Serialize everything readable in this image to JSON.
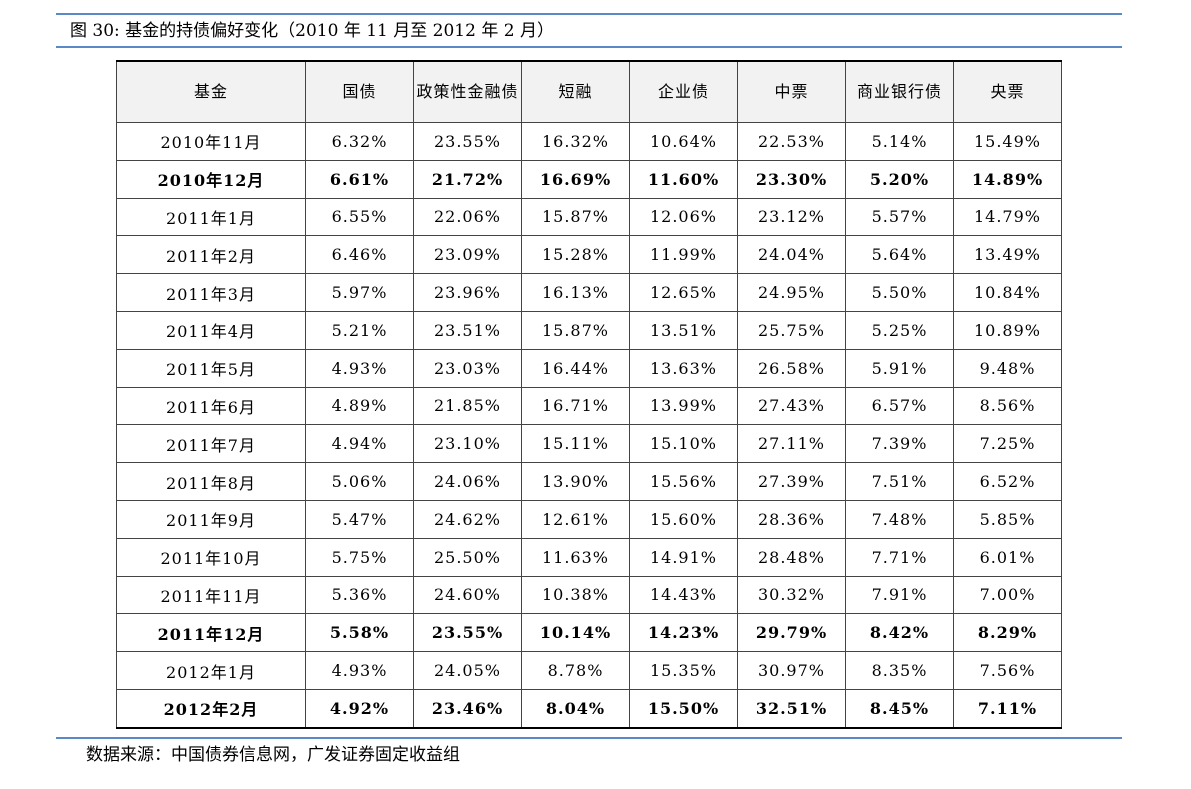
{
  "header": {
    "title": "图 30:  基金的持债偏好变化（2010 年 11 月至 2012 年 2 月）"
  },
  "table": {
    "columns": [
      "基金",
      "国债",
      "政策性金融债",
      "短融",
      "企业债",
      "中票",
      "商业银行债",
      "央票"
    ],
    "rows": [
      {
        "cells": [
          "2010年11月",
          "6.32%",
          "23.55%",
          "16.32%",
          "10.64%",
          "22.53%",
          "5.14%",
          "15.49%"
        ],
        "bold": false
      },
      {
        "cells": [
          "2010年12月",
          "6.61%",
          "21.72%",
          "16.69%",
          "11.60%",
          "23.30%",
          "5.20%",
          "14.89%"
        ],
        "bold": true
      },
      {
        "cells": [
          "2011年1月",
          "6.55%",
          "22.06%",
          "15.87%",
          "12.06%",
          "23.12%",
          "5.57%",
          "14.79%"
        ],
        "bold": false
      },
      {
        "cells": [
          "2011年2月",
          "6.46%",
          "23.09%",
          "15.28%",
          "11.99%",
          "24.04%",
          "5.64%",
          "13.49%"
        ],
        "bold": false
      },
      {
        "cells": [
          "2011年3月",
          "5.97%",
          "23.96%",
          "16.13%",
          "12.65%",
          "24.95%",
          "5.50%",
          "10.84%"
        ],
        "bold": false
      },
      {
        "cells": [
          "2011年4月",
          "5.21%",
          "23.51%",
          "15.87%",
          "13.51%",
          "25.75%",
          "5.25%",
          "10.89%"
        ],
        "bold": false
      },
      {
        "cells": [
          "2011年5月",
          "4.93%",
          "23.03%",
          "16.44%",
          "13.63%",
          "26.58%",
          "5.91%",
          "9.48%"
        ],
        "bold": false
      },
      {
        "cells": [
          "2011年6月",
          "4.89%",
          "21.85%",
          "16.71%",
          "13.99%",
          "27.43%",
          "6.57%",
          "8.56%"
        ],
        "bold": false
      },
      {
        "cells": [
          "2011年7月",
          "4.94%",
          "23.10%",
          "15.11%",
          "15.10%",
          "27.11%",
          "7.39%",
          "7.25%"
        ],
        "bold": false
      },
      {
        "cells": [
          "2011年8月",
          "5.06%",
          "24.06%",
          "13.90%",
          "15.56%",
          "27.39%",
          "7.51%",
          "6.52%"
        ],
        "bold": false
      },
      {
        "cells": [
          "2011年9月",
          "5.47%",
          "24.62%",
          "12.61%",
          "15.60%",
          "28.36%",
          "7.48%",
          "5.85%"
        ],
        "bold": false
      },
      {
        "cells": [
          "2011年10月",
          "5.75%",
          "25.50%",
          "11.63%",
          "14.91%",
          "28.48%",
          "7.71%",
          "6.01%"
        ],
        "bold": false
      },
      {
        "cells": [
          "2011年11月",
          "5.36%",
          "24.60%",
          "10.38%",
          "14.43%",
          "30.32%",
          "7.91%",
          "7.00%"
        ],
        "bold": false
      },
      {
        "cells": [
          "2011年12月",
          "5.58%",
          "23.55%",
          "10.14%",
          "14.23%",
          "29.79%",
          "8.42%",
          "8.29%"
        ],
        "bold": true
      },
      {
        "cells": [
          "2012年1月",
          "4.93%",
          "24.05%",
          "8.78%",
          "15.35%",
          "30.97%",
          "8.35%",
          "7.56%"
        ],
        "bold": false
      },
      {
        "cells": [
          "2012年2月",
          "4.92%",
          "23.46%",
          "8.04%",
          "15.50%",
          "32.51%",
          "8.45%",
          "7.11%"
        ],
        "bold": true
      }
    ]
  },
  "footer": {
    "source": "数据来源：中国债券信息网，广发证券固定收益组"
  }
}
